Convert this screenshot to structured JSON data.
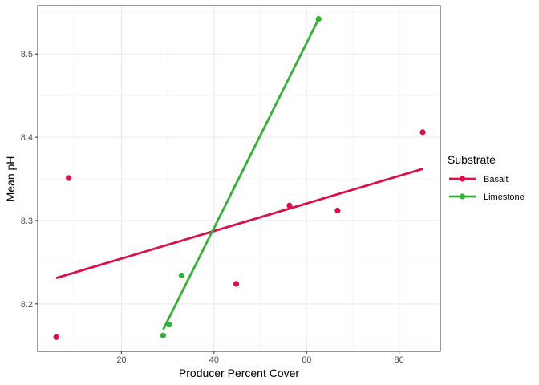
{
  "chart_data": {
    "type": "scatter",
    "xlabel": "Producer Percent Cover",
    "ylabel": "Mean pH",
    "xlim": [
      1.9,
      88.9
    ],
    "ylim": [
      8.143,
      8.558
    ],
    "x_ticks": [
      20,
      40,
      60,
      80
    ],
    "y_ticks": [
      8.2,
      8.3,
      8.4,
      8.5
    ],
    "x_tick_labels": [
      "20",
      "40",
      "60",
      "80"
    ],
    "y_tick_labels": [
      "8.2",
      "8.3",
      "8.4",
      "8.5"
    ],
    "grid": true,
    "legend": {
      "title": "Substrate",
      "position": "right"
    },
    "series": [
      {
        "name": "Basalt",
        "color": "#dc0f4b",
        "points": [
          {
            "x": 5.9,
            "y": 8.16
          },
          {
            "x": 8.6,
            "y": 8.351
          },
          {
            "x": 44.8,
            "y": 8.224
          },
          {
            "x": 56.3,
            "y": 8.318
          },
          {
            "x": 66.7,
            "y": 8.312
          },
          {
            "x": 85.1,
            "y": 8.406
          }
        ],
        "fit": [
          {
            "x": 5.9,
            "y": 8.231
          },
          {
            "x": 85.1,
            "y": 8.362
          }
        ]
      },
      {
        "name": "Limestone",
        "color": "#35b037",
        "points": [
          {
            "x": 29.0,
            "y": 8.162
          },
          {
            "x": 30.3,
            "y": 8.175
          },
          {
            "x": 33.0,
            "y": 8.234
          },
          {
            "x": 62.6,
            "y": 8.542
          }
        ],
        "fit": [
          {
            "x": 29.0,
            "y": 8.169
          },
          {
            "x": 62.6,
            "y": 8.542
          }
        ]
      }
    ]
  }
}
